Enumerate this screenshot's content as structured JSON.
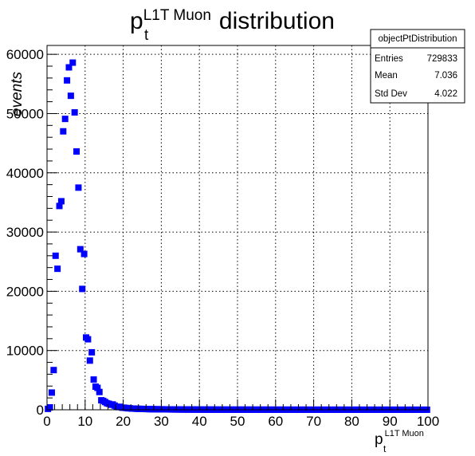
{
  "chart_data": {
    "type": "scatter",
    "title_base": "p",
    "title_sub": "t",
    "title_sup": "L1T Muon",
    "title_rest": "distribution",
    "xlabel_base": "p",
    "xlabel_sub": "t",
    "xlabel_sup": "L1T Muon",
    "ylabel": "events",
    "xlim": [
      0,
      100
    ],
    "ylim": [
      0,
      61500
    ],
    "xticks": [
      0,
      10,
      20,
      30,
      40,
      50,
      60,
      70,
      80,
      90,
      100
    ],
    "yticks": [
      0,
      10000,
      20000,
      30000,
      40000,
      50000,
      60000
    ],
    "grid": true,
    "marker_color": "#0000ff",
    "stats": {
      "name": "objectPtDistribution",
      "rows": [
        {
          "label": "Entries",
          "value": "729833"
        },
        {
          "label": "Mean",
          "value": "7.036"
        },
        {
          "label": "Std Dev",
          "value": "4.022"
        }
      ]
    },
    "x": [
      0.25,
      0.75,
      1.25,
      1.75,
      2.25,
      2.75,
      3.25,
      3.75,
      4.25,
      4.75,
      5.25,
      5.75,
      6.25,
      6.75,
      7.25,
      7.75,
      8.25,
      8.75,
      9.25,
      9.75,
      10.25,
      10.75,
      11.25,
      11.75,
      12.25,
      12.75,
      13.25,
      13.75,
      14.25,
      14.75,
      15.25,
      15.75,
      16.25,
      16.75,
      17.25,
      17.75,
      18.25,
      18.75,
      19.25,
      19.75,
      20.25,
      20.75,
      21.25,
      21.75,
      22.25,
      22.75,
      23.25,
      23.75,
      24.25,
      24.75,
      25.25,
      25.75,
      26.25,
      26.75,
      27.25,
      27.75,
      28.25,
      28.75,
      29.25,
      29.75,
      30.25,
      30.75,
      31.25,
      31.75,
      32.25,
      32.75,
      33.25,
      33.75,
      34.25,
      34.75,
      35.25,
      35.75,
      36.25,
      36.75,
      37.25,
      37.75,
      38.25,
      38.75,
      39.25,
      39.75,
      40.25,
      40.75,
      41.25,
      41.75,
      42.25,
      42.75,
      43.25,
      43.75,
      44.25,
      44.75,
      45.25,
      45.75,
      46.25,
      46.75,
      47.25,
      47.75,
      48.25,
      48.75,
      49.25,
      49.75,
      50.25,
      50.75,
      51.25,
      51.75,
      52.25,
      52.75,
      53.25,
      53.75,
      54.25,
      54.75,
      55.25,
      55.75,
      56.25,
      56.75,
      57.25,
      57.75,
      58.25,
      58.75,
      59.25,
      59.75,
      60.25,
      60.75,
      61.25,
      61.75,
      62.25,
      62.75,
      63.25,
      63.75,
      64.25,
      64.75,
      65.25,
      65.75,
      66.25,
      66.75,
      67.25,
      67.75,
      68.25,
      68.75,
      69.25,
      69.75,
      70.25,
      70.75,
      71.25,
      71.75,
      72.25,
      72.75,
      73.25,
      73.75,
      74.25,
      74.75,
      75.25,
      75.75,
      76.25,
      76.75,
      77.25,
      77.75,
      78.25,
      78.75,
      79.25,
      79.75,
      80.25,
      80.75,
      81.25,
      81.75,
      82.25,
      82.75,
      83.25,
      83.75,
      84.25,
      84.75,
      85.25,
      85.75,
      86.25,
      86.75,
      87.25,
      87.75,
      88.25,
      88.75,
      89.25,
      89.75,
      90.25,
      90.75,
      91.25,
      91.75,
      92.25,
      92.75,
      93.25,
      93.75,
      94.25,
      94.75,
      95.25,
      95.75,
      96.25,
      96.75,
      97.25,
      97.75,
      98.25,
      98.75,
      99.25,
      99.75
    ],
    "y": [
      150,
      400,
      2900,
      6700,
      26000,
      23800,
      34400,
      35200,
      47000,
      49100,
      55600,
      57800,
      53000,
      58600,
      50200,
      43600,
      37500,
      27100,
      20400,
      26300,
      12200,
      11900,
      8300,
      9700,
      5100,
      3900,
      3700,
      3000,
      1600,
      1500,
      1300,
      1100,
      1000,
      850,
      900,
      700,
      500,
      450,
      500,
      350,
      350,
      300,
      250,
      250,
      200,
      200,
      180,
      160,
      150,
      150,
      140,
      130,
      120,
      110,
      100,
      100,
      90,
      90,
      80,
      80,
      75,
      70,
      70,
      65,
      60,
      60,
      55,
      55,
      50,
      50,
      45,
      45,
      40,
      40,
      40,
      38,
      36,
      35,
      34,
      33,
      32,
      31,
      30,
      30,
      29,
      28,
      28,
      27,
      26,
      26,
      25,
      25,
      24,
      24,
      23,
      23,
      22,
      22,
      21,
      21,
      20,
      20,
      20,
      20,
      19,
      19,
      19,
      18,
      18,
      18,
      17,
      17,
      17,
      16,
      16,
      16,
      16,
      15,
      15,
      15,
      15,
      14,
      14,
      14,
      14,
      13,
      13,
      13,
      13,
      13,
      12,
      12,
      12,
      12,
      12,
      12,
      11,
      11,
      11,
      11,
      11,
      11,
      11,
      10,
      10,
      10,
      10,
      10,
      10,
      10,
      10,
      10,
      10,
      9,
      9,
      9,
      9,
      9,
      9,
      9,
      9,
      9,
      9,
      9,
      9,
      8,
      8,
      8,
      8,
      8,
      8,
      8,
      8,
      8,
      8,
      8,
      8,
      8,
      8,
      7,
      7,
      7,
      7,
      7,
      7,
      7,
      7,
      7,
      7,
      7,
      7,
      7,
      7,
      7,
      7,
      7,
      7,
      7,
      7,
      7
    ]
  }
}
